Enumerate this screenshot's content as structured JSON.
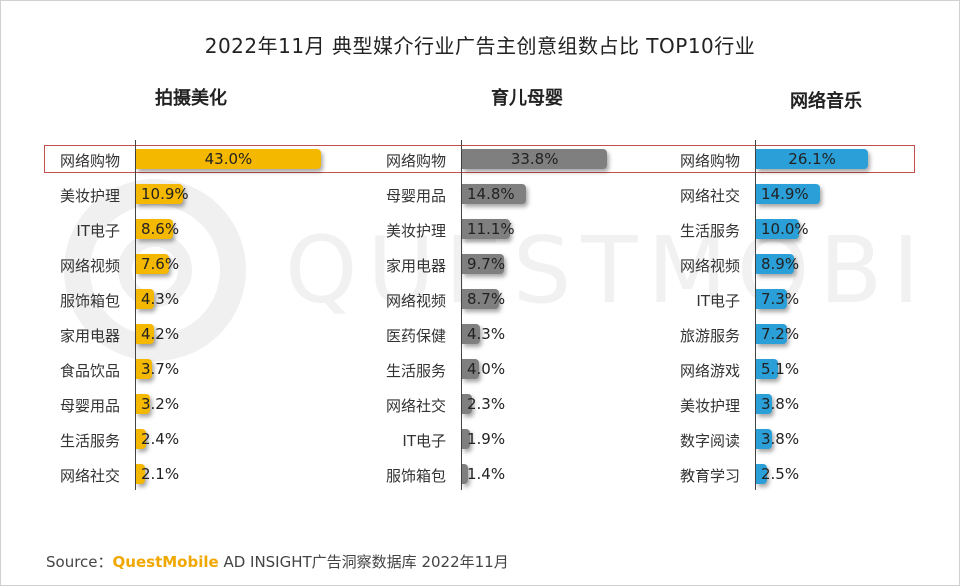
{
  "chart_data": {
    "type": "bar",
    "title": "2022年11月 典型媒介行业广告主创意组数占比 TOP10行业",
    "panels": [
      {
        "name": "拍摄美化",
        "color": "#f5b800",
        "categories": [
          "网络购物",
          "美妆护理",
          "IT电子",
          "网络视频",
          "服饰箱包",
          "家用电器",
          "食品饮品",
          "母婴用品",
          "生活服务",
          "网络社交"
        ],
        "values": [
          43.0,
          10.9,
          8.6,
          7.6,
          4.3,
          4.2,
          3.7,
          3.2,
          2.4,
          2.1
        ],
        "labels": [
          "43.0%",
          "10.9%",
          "8.6%",
          "7.6%",
          "4.3%",
          "4.2%",
          "3.7%",
          "3.2%",
          "2.4%",
          "2.1%"
        ]
      },
      {
        "name": "育儿母婴",
        "color": "#7f7f7f",
        "categories": [
          "网络购物",
          "母婴用品",
          "美妆护理",
          "家用电器",
          "网络视频",
          "医药保健",
          "生活服务",
          "网络社交",
          "IT电子",
          "服饰箱包"
        ],
        "values": [
          33.8,
          14.8,
          11.1,
          9.7,
          8.7,
          4.3,
          4.0,
          2.3,
          1.9,
          1.4
        ],
        "labels": [
          "33.8%",
          "14.8%",
          "11.1%",
          "9.7%",
          "8.7%",
          "4.3%",
          "4.0%",
          "2.3%",
          "1.9%",
          "1.4%"
        ]
      },
      {
        "name": "网络音乐",
        "color": "#2a9fd8",
        "categories": [
          "网络购物",
          "网络社交",
          "生活服务",
          "网络视频",
          "IT电子",
          "旅游服务",
          "网络游戏",
          "美妆护理",
          "数字阅读",
          "教育学习"
        ],
        "values": [
          26.1,
          14.9,
          10.0,
          8.9,
          7.3,
          7.2,
          5.1,
          3.8,
          3.8,
          2.5
        ],
        "labels": [
          "26.1%",
          "14.9%",
          "10.0%",
          "8.9%",
          "7.3%",
          "7.2%",
          "5.1%",
          "3.8%",
          "3.8%",
          "2.5%"
        ]
      }
    ]
  },
  "watermark": "QUESTMOBILE",
  "source": {
    "prefix": "Source：",
    "brand": "QuestMobile",
    "rest": " AD INSIGHT广告洞察数据库 2022年11月"
  }
}
